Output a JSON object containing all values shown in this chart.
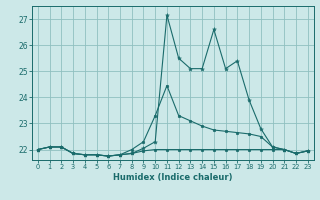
{
  "xlabel": "Humidex (Indice chaleur)",
  "background_color": "#cce8e8",
  "grid_color": "#90c0c0",
  "line_color": "#1a6b6b",
  "xlim": [
    -0.5,
    23.5
  ],
  "ylim": [
    21.6,
    27.5
  ],
  "yticks": [
    22,
    23,
    24,
    25,
    26,
    27
  ],
  "xticks": [
    0,
    1,
    2,
    3,
    4,
    5,
    6,
    7,
    8,
    9,
    10,
    11,
    12,
    13,
    14,
    15,
    16,
    17,
    18,
    19,
    20,
    21,
    22,
    23
  ],
  "line1_x": [
    0,
    1,
    2,
    3,
    4,
    5,
    6,
    7,
    8,
    9,
    10,
    11,
    12,
    13,
    14,
    15,
    16,
    17,
    18,
    19,
    20,
    21,
    22,
    23
  ],
  "line1_y": [
    22.0,
    22.1,
    22.1,
    21.85,
    21.8,
    21.8,
    21.75,
    21.8,
    21.85,
    21.95,
    22.0,
    22.0,
    22.0,
    22.0,
    22.0,
    22.0,
    22.0,
    22.0,
    22.0,
    22.0,
    22.0,
    22.0,
    21.85,
    21.95
  ],
  "line2_x": [
    0,
    1,
    2,
    3,
    4,
    5,
    6,
    7,
    8,
    9,
    10,
    11,
    12,
    13,
    14,
    15,
    16,
    17,
    18,
    19,
    20,
    21,
    22,
    23
  ],
  "line2_y": [
    22.0,
    22.1,
    22.1,
    21.85,
    21.8,
    21.8,
    21.75,
    21.8,
    21.85,
    22.05,
    22.3,
    27.15,
    25.5,
    25.1,
    25.1,
    26.6,
    25.1,
    25.4,
    23.9,
    22.8,
    22.1,
    22.0,
    21.85,
    21.95
  ],
  "line3_x": [
    0,
    1,
    2,
    3,
    4,
    5,
    6,
    7,
    8,
    9,
    10,
    11,
    12,
    13,
    14,
    15,
    16,
    17,
    18,
    19,
    20,
    21,
    22,
    23
  ],
  "line3_y": [
    22.0,
    22.1,
    22.1,
    21.85,
    21.8,
    21.8,
    21.75,
    21.8,
    22.0,
    22.3,
    23.3,
    24.45,
    23.3,
    23.1,
    22.9,
    22.75,
    22.7,
    22.65,
    22.6,
    22.5,
    22.1,
    22.0,
    21.85,
    21.95
  ]
}
